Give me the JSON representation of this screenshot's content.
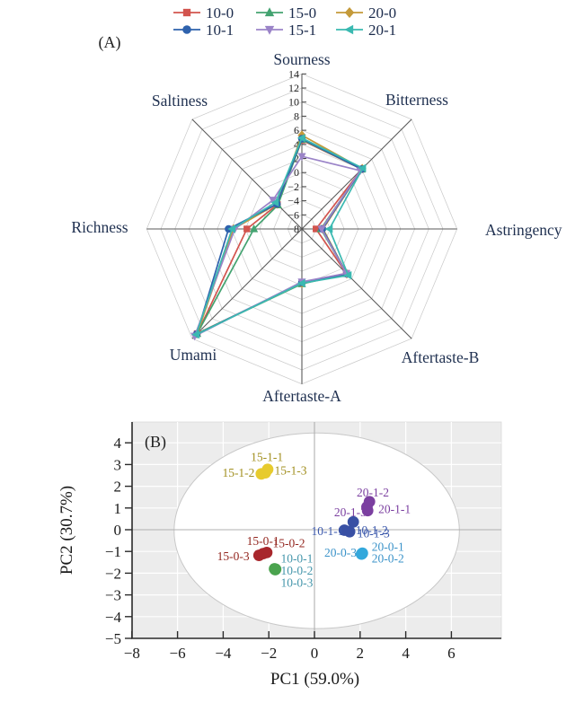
{
  "chart_data": [
    {
      "type": "radar",
      "panel_tag": "(A)",
      "categories": [
        "Sourness",
        "Bitterness",
        "Astringency",
        "Aftertaste-B",
        "Aftertaste-A",
        "Umami",
        "Richness",
        "Saltiness"
      ],
      "r_min": -8,
      "r_max": 14,
      "r_ticks": [
        14,
        12,
        10,
        8,
        6,
        4,
        2,
        0,
        -2,
        -4,
        -6,
        -8
      ],
      "grid_on": true,
      "legend_position": "top",
      "series": [
        {
          "name": "10-0",
          "marker": "square",
          "color": "#d2544e",
          "values": [
            4.6,
            4.0,
            -6.0,
            0.9,
            -0.3,
            13.0,
            -0.2,
            -3.1
          ]
        },
        {
          "name": "15-0",
          "marker": "triangle-up",
          "color": "#44a371",
          "values": [
            4.7,
            4.0,
            -5.3,
            1.0,
            -0.2,
            13.0,
            -1.2,
            -3.2
          ]
        },
        {
          "name": "20-0",
          "marker": "diamond",
          "color": "#c49a3a",
          "values": [
            5.3,
            4.1,
            -5.0,
            1.0,
            -0.3,
            13.0,
            1.7,
            -3.0
          ]
        },
        {
          "name": "10-1",
          "marker": "circle",
          "color": "#2e62ad",
          "values": [
            4.8,
            4.0,
            -5.1,
            1.0,
            -0.4,
            13.1,
            2.4,
            -3.0
          ]
        },
        {
          "name": "15-1",
          "marker": "triangle-down",
          "color": "#9b84c8",
          "values": [
            2.3,
            3.7,
            -5.2,
            0.9,
            -0.5,
            13.5,
            1.5,
            -2.2
          ]
        },
        {
          "name": "20-1",
          "marker": "triangle-left",
          "color": "#3ab9b1",
          "values": [
            4.9,
            4.2,
            -4.1,
            1.3,
            -0.3,
            13.2,
            1.9,
            -2.7
          ]
        }
      ]
    },
    {
      "type": "scatter",
      "panel_tag": "(B)",
      "xlabel": "PC1 (59.0%)",
      "ylabel": "PC2 (30.7%)",
      "xlim": [
        -8,
        8
      ],
      "ylim": [
        -5,
        5
      ],
      "xticks": [
        -8,
        -6,
        -4,
        -2,
        0,
        2,
        4,
        6
      ],
      "yticks": [
        4,
        3,
        2,
        1,
        0,
        -1,
        -2,
        -3,
        -4,
        -5
      ],
      "grid_on": true,
      "confidence_ellipse": {
        "cx": 0.1,
        "cy": -0.05,
        "rx": 6.25,
        "ry": 4.5
      },
      "groups": [
        {
          "name": "15-1",
          "dot_color": "#e7cb2d",
          "label_color": "#a18f1f",
          "points": [
            [
              -2.33,
              2.57
            ],
            [
              -2.15,
              2.62
            ],
            [
              -2.05,
              2.78
            ]
          ],
          "labels": [
            {
              "text": "15-1-1",
              "x": -2.08,
              "y": 3.35,
              "anchor": "middle"
            },
            {
              "text": "15-1-2",
              "x": -2.62,
              "y": 2.62,
              "anchor": "end"
            },
            {
              "text": "15-1-3",
              "x": -1.75,
              "y": 2.72,
              "anchor": "start"
            }
          ]
        },
        {
          "name": "20-1",
          "dot_color": "#7b3fa0",
          "label_color": "#7b3fa0",
          "points": [
            [
              2.3,
              1.05
            ],
            [
              2.41,
              1.29
            ],
            [
              2.33,
              0.88
            ]
          ],
          "labels": [
            {
              "text": "20-1-2",
              "x": 2.56,
              "y": 1.72,
              "anchor": "middle"
            },
            {
              "text": "20-1-3",
              "x": 2.28,
              "y": 0.8,
              "anchor": "end"
            },
            {
              "text": "20-1-1",
              "x": 2.8,
              "y": 0.95,
              "anchor": "start"
            }
          ]
        },
        {
          "name": "10-1",
          "dot_color": "#3950a4",
          "label_color": "#3a57ab",
          "points": [
            [
              1.7,
              0.36
            ],
            [
              1.31,
              -0.02
            ],
            [
              1.54,
              -0.09
            ]
          ],
          "labels": [
            {
              "text": "10-1-1",
              "x": 1.28,
              "y": -0.07,
              "anchor": "end"
            },
            {
              "text": "10-1-2",
              "x": 1.8,
              "y": -0.02,
              "anchor": "start"
            },
            {
              "text": "10-1-3",
              "x": 1.88,
              "y": -0.16,
              "anchor": "start"
            }
          ]
        },
        {
          "name": "15-0",
          "dot_color": "#a8272c",
          "label_color": "#93261f",
          "points": [
            [
              -2.43,
              -1.18
            ],
            [
              -2.25,
              -1.1
            ],
            [
              -2.09,
              -1.05
            ]
          ],
          "labels": [
            {
              "text": "15-0-1",
              "x": -2.26,
              "y": -0.52,
              "anchor": "middle"
            },
            {
              "text": "15-0-2",
              "x": -1.12,
              "y": -0.62,
              "anchor": "middle"
            },
            {
              "text": "15-0-3",
              "x": -2.85,
              "y": -1.22,
              "anchor": "end"
            }
          ]
        },
        {
          "name": "10-0",
          "dot_color": "#4aa34e",
          "label_color": "#4596ab",
          "points": [
            [
              -1.75,
              -1.8
            ],
            [
              -1.7,
              -1.82
            ],
            [
              -1.72,
              -1.84
            ]
          ],
          "labels": [
            {
              "text": "10-0-1",
              "x": -0.77,
              "y": -1.33,
              "anchor": "middle"
            },
            {
              "text": "10-0-2",
              "x": -0.77,
              "y": -1.88,
              "anchor": "middle"
            },
            {
              "text": "10-0-3",
              "x": -0.77,
              "y": -2.43,
              "anchor": "middle"
            }
          ]
        },
        {
          "name": "20-0",
          "dot_color": "#33a8dc",
          "label_color": "#3b93c9",
          "points": [
            [
              2.06,
              -1.12
            ],
            [
              2.1,
              -1.08
            ],
            [
              2.08,
              -1.11
            ]
          ],
          "labels": [
            {
              "text": "20-0-3",
              "x": 1.85,
              "y": -1.05,
              "anchor": "end"
            },
            {
              "text": "20-0-1",
              "x": 3.22,
              "y": -0.78,
              "anchor": "middle"
            },
            {
              "text": "20-0-2",
              "x": 3.22,
              "y": -1.32,
              "anchor": "middle"
            }
          ]
        }
      ]
    }
  ]
}
